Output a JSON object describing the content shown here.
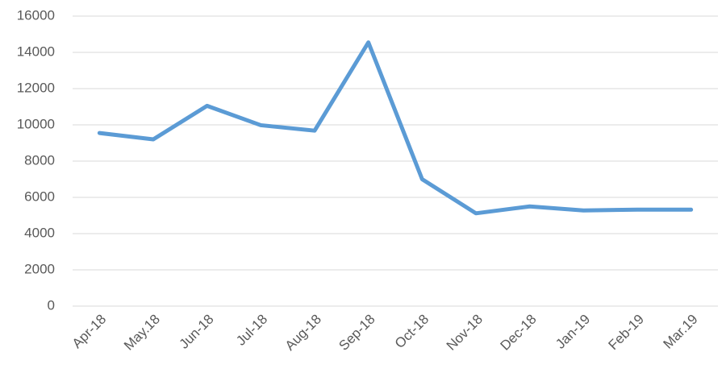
{
  "chart_data": {
    "type": "line",
    "categories": [
      "Apr-18",
      "May.18",
      "Jun-18",
      "Jul-18",
      "Aug-18",
      "Sep-18",
      "Oct-18",
      "Nov-18",
      "Dec-18",
      "Jan-19",
      "Feb-19",
      "Mar.19"
    ],
    "series": [
      {
        "color": "#5b9bd5",
        "values": [
          9550,
          9200,
          11050,
          9980,
          9680,
          14550,
          7000,
          5120,
          5500,
          5280,
          5320,
          5320
        ]
      }
    ],
    "ylim": [
      0,
      16000
    ],
    "yticks": [
      0,
      2000,
      4000,
      6000,
      8000,
      10000,
      12000,
      14000,
      16000
    ],
    "grid": true
  }
}
